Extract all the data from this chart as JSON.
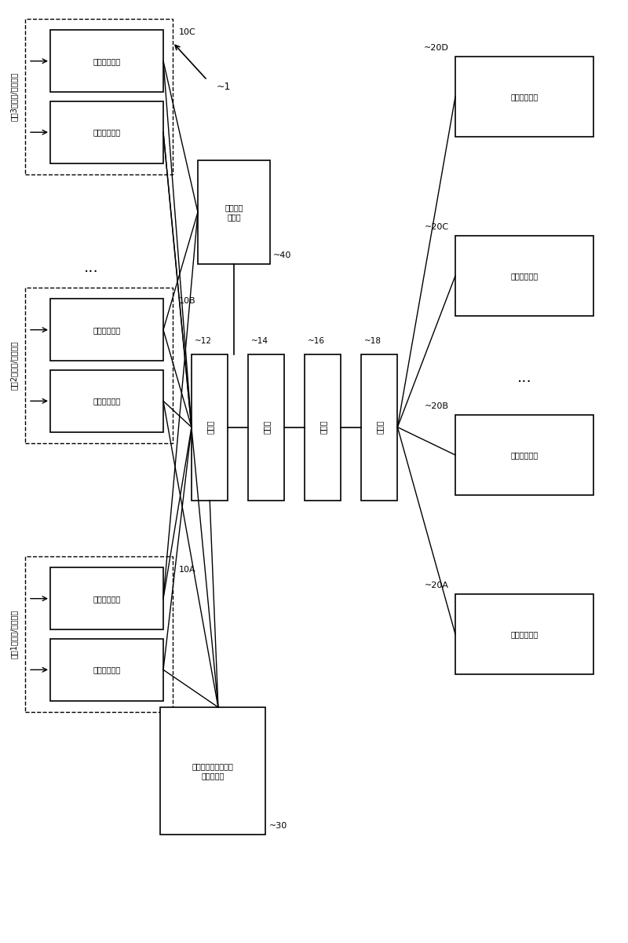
{
  "bg_color": "#ffffff",
  "servers": [
    {
      "id": "10C",
      "ch_label": "频道3的迖频/音频信号"
    },
    {
      "id": "10B",
      "ch_label": "频道2的迖频/音频信号"
    },
    {
      "id": "10A",
      "ch_label": "频道1的迖频/音频信号"
    }
  ],
  "inner1_label": "第二处理部分",
  "inner2_label": "第一处理部分",
  "net_boxes": [
    {
      "id": "12",
      "label": "交换机"
    },
    {
      "id": "14",
      "label": "路由器"
    },
    {
      "id": "16",
      "label": "路由器"
    },
    {
      "id": "18",
      "label": "交换机"
    }
  ],
  "ref_server_label": "参考时钟\n服务器",
  "ref_server_id": "40",
  "plan_server_label": "计划发布时间点信息\n传输服务器",
  "plan_server_id": "30",
  "info_devs": [
    {
      "id": "20D",
      "label": "信息处理装置"
    },
    {
      "id": "20C",
      "label": "信息处理装置"
    },
    {
      "id": "20B",
      "label": "信息处理装置"
    },
    {
      "id": "20A",
      "label": "信息处理装置"
    }
  ],
  "system_id": "1",
  "font_size": 7.5
}
